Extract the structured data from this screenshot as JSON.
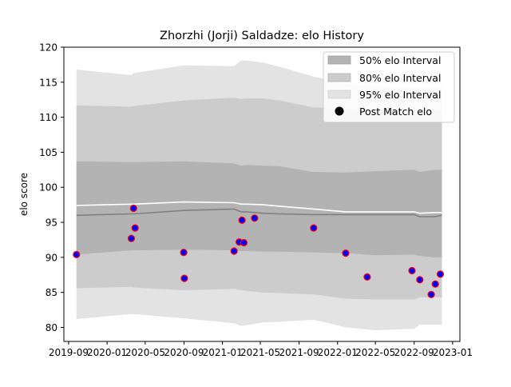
{
  "chart_data": {
    "type": "area",
    "title": "Zhorzhi (Jorji) Saldadze: elo History",
    "xlabel": "",
    "ylabel": "elo score",
    "xlim": [
      "2019-08-17",
      "2023-01-24"
    ],
    "ylim": [
      78,
      120
    ],
    "x_ticks": [
      "2019-09-01",
      "2020-01-01",
      "2020-05-01",
      "2020-09-01",
      "2021-01-01",
      "2021-05-01",
      "2021-09-01",
      "2022-01-01",
      "2022-05-01",
      "2022-09-01",
      "2023-01-01"
    ],
    "x_tick_labels": [
      "2019-09",
      "2020-01",
      "2020-05",
      "2020-09",
      "2021-01",
      "2021-05",
      "2021-09",
      "2022-01",
      "2022-05",
      "2022-09",
      "2023-01"
    ],
    "y_ticks": [
      80,
      85,
      90,
      95,
      100,
      105,
      110,
      115,
      120
    ],
    "y_tick_labels": [
      "80",
      "85",
      "90",
      "95",
      "100",
      "105",
      "110",
      "115",
      "120"
    ],
    "grid": false,
    "legend_position": "top-right",
    "legend": [
      "50% elo Interval",
      "80% elo Interval",
      "95% elo Interval",
      "Post Match elo"
    ],
    "colors": {
      "band50": "#b3b3b3",
      "band80": "#cccccc",
      "band95": "#e3e3e3",
      "median_line": "#808080",
      "mean_line": "#ffffff",
      "point_fill": "#0000ff",
      "point_edge": "#ff0000",
      "legend_point": "#000000"
    },
    "bands": {
      "x": [
        "2019-09-26",
        "2020-03-18",
        "2020-03-25",
        "2020-08-31",
        "2021-02-07",
        "2021-03-01",
        "2021-03-18",
        "2021-05-10",
        "2021-07-01",
        "2021-10-17",
        "2022-01-27",
        "2022-05-01",
        "2022-09-01",
        "2022-09-19",
        "2022-11-05",
        "2022-11-28"
      ],
      "band95_low": [
        81.2,
        81.9,
        81.9,
        81.3,
        80.6,
        80.2,
        80.3,
        80.7,
        80.8,
        81.1,
        80.0,
        79.6,
        79.8,
        80.4,
        80.4,
        80.4
      ],
      "band95_high": [
        116.8,
        116.0,
        116.3,
        117.4,
        117.3,
        118.1,
        118.1,
        117.8,
        117.2,
        115.8,
        114.8,
        114.4,
        114.2,
        114.3,
        114.3,
        114.3
      ],
      "band80_low": [
        85.6,
        85.8,
        85.7,
        85.3,
        85.5,
        85.3,
        85.2,
        85.0,
        84.9,
        84.7,
        84.1,
        84.0,
        84.0,
        84.3,
        84.3,
        84.3
      ],
      "band80_high": [
        111.7,
        111.5,
        111.6,
        112.4,
        112.8,
        112.6,
        112.7,
        112.7,
        112.4,
        111.4,
        111.2,
        111.0,
        111.0,
        110.9,
        110.9,
        110.9
      ],
      "band50_low": [
        90.4,
        91.0,
        91.0,
        91.1,
        91.0,
        90.9,
        90.9,
        90.8,
        90.8,
        90.7,
        90.6,
        90.3,
        90.4,
        90.2,
        90.0,
        90.0
      ],
      "band50_high": [
        103.7,
        103.6,
        103.6,
        103.7,
        103.4,
        103.1,
        103.2,
        103.1,
        103.0,
        102.2,
        102.1,
        102.3,
        102.5,
        102.2,
        102.5,
        102.5
      ],
      "median": [
        96.0,
        96.2,
        96.2,
        96.7,
        96.9,
        96.5,
        96.5,
        96.3,
        96.2,
        96.1,
        96.1,
        96.1,
        96.1,
        95.8,
        95.8,
        96.0
      ],
      "mean": [
        97.4,
        97.6,
        97.6,
        97.9,
        97.8,
        97.6,
        97.6,
        97.5,
        97.3,
        96.9,
        96.5,
        96.5,
        96.5,
        96.3,
        96.4,
        96.4
      ]
    },
    "series": [
      {
        "name": "Post Match elo",
        "x": [
          "2019-09-26",
          "2020-03-18",
          "2020-03-25",
          "2020-03-30",
          "2020-08-31",
          "2020-09-02",
          "2021-02-07",
          "2021-02-23",
          "2021-03-04",
          "2021-03-10",
          "2021-04-13",
          "2021-10-17",
          "2022-01-27",
          "2022-04-05",
          "2022-08-25",
          "2022-09-19",
          "2022-10-25",
          "2022-11-07",
          "2022-11-23"
        ],
        "values": [
          90.4,
          92.7,
          97.0,
          94.2,
          90.7,
          87.0,
          90.9,
          92.2,
          95.3,
          92.1,
          95.6,
          94.2,
          90.6,
          87.2,
          88.1,
          86.8,
          84.7,
          86.2,
          87.6
        ]
      }
    ]
  }
}
